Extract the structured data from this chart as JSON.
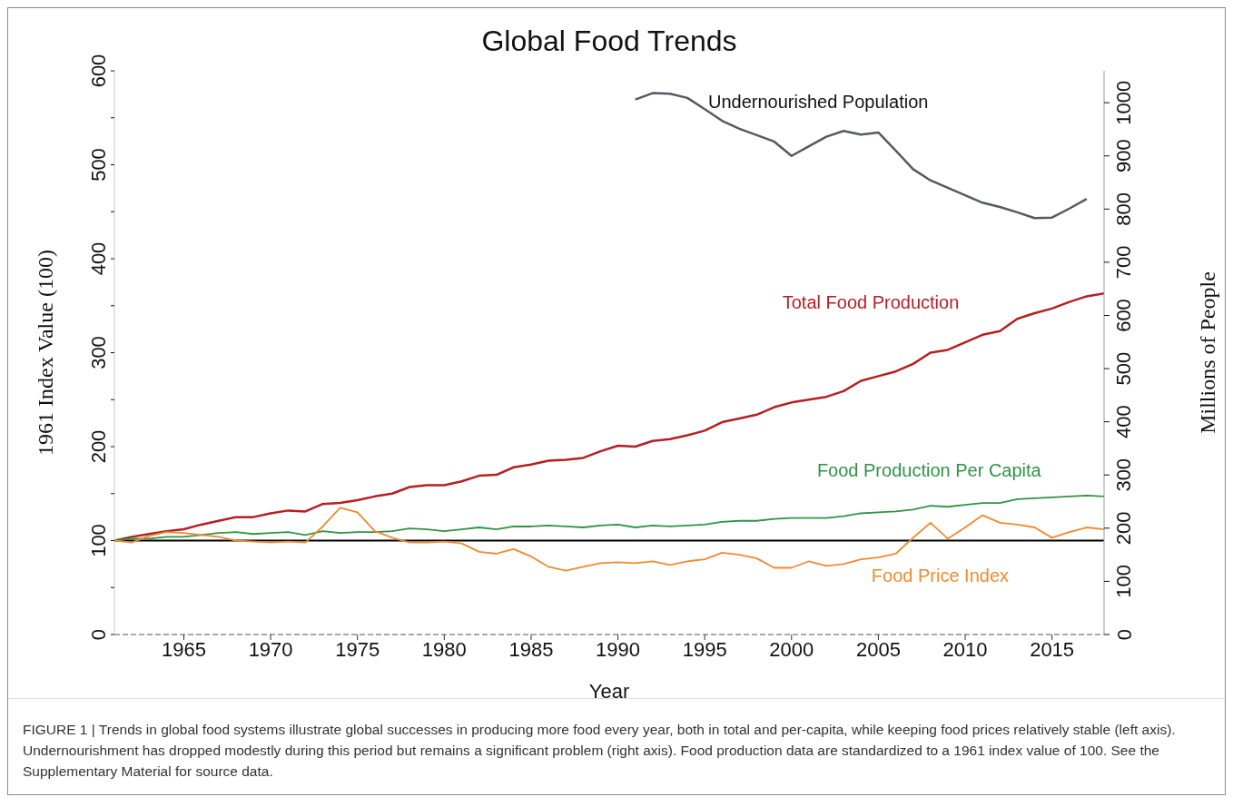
{
  "chart_data": {
    "type": "line",
    "title": "Global Food Trends",
    "xlabel": "Year",
    "ylabel": "1961 Index Value (100)",
    "y2label": "Millions of People",
    "x": [
      1961,
      1962,
      1963,
      1964,
      1965,
      1966,
      1967,
      1968,
      1969,
      1970,
      1971,
      1972,
      1973,
      1974,
      1975,
      1976,
      1977,
      1978,
      1979,
      1980,
      1981,
      1982,
      1983,
      1984,
      1985,
      1986,
      1987,
      1988,
      1989,
      1990,
      1991,
      1992,
      1993,
      1994,
      1995,
      1996,
      1997,
      1998,
      1999,
      2000,
      2001,
      2002,
      2003,
      2004,
      2005,
      2006,
      2007,
      2008,
      2009,
      2010,
      2011,
      2012,
      2013,
      2014,
      2015,
      2016,
      2017,
      2018
    ],
    "series": [
      {
        "name": "Undernourished Population",
        "color": "#545963",
        "axis": "y2",
        "values": [
          null,
          null,
          null,
          null,
          null,
          null,
          null,
          null,
          null,
          null,
          null,
          null,
          null,
          null,
          null,
          null,
          null,
          null,
          null,
          null,
          null,
          null,
          null,
          null,
          null,
          null,
          null,
          null,
          null,
          null,
          1006,
          1018,
          1017,
          1009,
          988,
          966,
          951,
          939,
          927,
          900,
          918,
          936,
          947,
          940,
          944,
          910,
          875,
          854,
          840,
          826,
          812,
          804,
          794,
          783,
          784,
          801,
          819,
          null
        ]
      },
      {
        "name": "Total Food Production",
        "color": "#b51f24",
        "values": [
          100,
          104,
          107,
          110,
          112,
          117,
          121,
          125,
          125,
          129,
          132,
          131,
          139,
          140,
          143,
          147,
          150,
          157,
          159,
          159,
          163,
          169,
          170,
          178,
          181,
          185,
          186,
          188,
          195,
          201,
          200,
          206,
          208,
          212,
          217,
          226,
          230,
          234,
          242,
          247,
          250,
          253,
          259,
          270,
          275,
          280,
          288,
          300,
          303,
          311,
          319,
          323,
          336,
          342,
          347,
          354,
          360,
          363
        ]
      },
      {
        "name": "Food Production Per Capita",
        "color": "#2e9444",
        "values": [
          100,
          102,
          102,
          104,
          104,
          106,
          108,
          109,
          107,
          108,
          109,
          106,
          110,
          108,
          109,
          109,
          110,
          113,
          112,
          110,
          112,
          114,
          112,
          115,
          115,
          116,
          115,
          114,
          116,
          117,
          114,
          116,
          115,
          116,
          117,
          120,
          121,
          121,
          123,
          124,
          124,
          124,
          126,
          129,
          130,
          131,
          133,
          137,
          136,
          138,
          140,
          140,
          144,
          145,
          146,
          147,
          148,
          147
        ]
      },
      {
        "name": "Food Price Index",
        "color": "#f08a30",
        "values": [
          100,
          98,
          105,
          109,
          108,
          106,
          104,
          100,
          99,
          98,
          99,
          98,
          115,
          135,
          130,
          110,
          103,
          98,
          98,
          99,
          97,
          88,
          86,
          91,
          83,
          72,
          68,
          72,
          76,
          77,
          76,
          78,
          74,
          78,
          80,
          87,
          85,
          81,
          71,
          71,
          78,
          73,
          75,
          80,
          82,
          86,
          103,
          119,
          102,
          114,
          127,
          119,
          117,
          114,
          103,
          109,
          114,
          112
        ]
      }
    ],
    "xlim": [
      1961,
      2018
    ],
    "xticks": [
      1965,
      1970,
      1975,
      1980,
      1985,
      1990,
      1995,
      2000,
      2005,
      2010,
      2015
    ],
    "ylim": [
      0,
      600
    ],
    "yticks": [
      0,
      {
        "value": 50,
        "label": null
      },
      100,
      {
        "value": 150,
        "label": null
      },
      200,
      {
        "value": 250,
        "label": null
      },
      300,
      {
        "value": 350,
        "label": null
      },
      400,
      {
        "value": 450,
        "label": null
      },
      500,
      {
        "value": 550,
        "label": null
      },
      600
    ],
    "y2lim": [
      0,
      1060
    ],
    "y2ticks": [
      0,
      100,
      200,
      300,
      400,
      500,
      600,
      700,
      800,
      900,
      1000
    ],
    "ref_lines": [
      {
        "axis": "y",
        "value": 100,
        "color": "#000000"
      }
    ],
    "legend": false,
    "annotations": [
      "FIGURE 1 | Trends in global food systems illustrate global successes in producing more food every year, both in total and per-capita, while keeping food prices relatively stable (left axis). Undernourishment has dropped modestly during this period but remains a significant problem (right axis). Food production data are standardized to a 1961 index value of 100. See the Supplementary Material for source data."
    ]
  }
}
